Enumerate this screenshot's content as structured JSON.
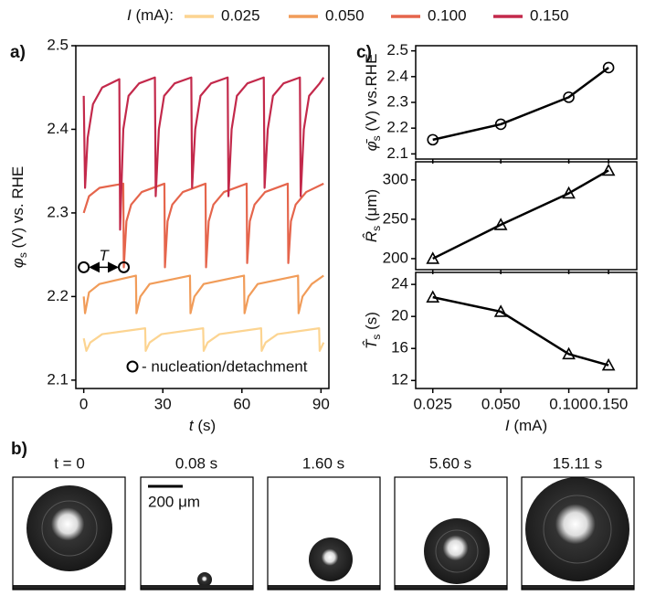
{
  "chart_data": [
    {
      "type": "line",
      "panel_label": "a)",
      "ylabel": {
        "sym": "φ",
        "sub": "s",
        "rest": " (V) vs. RHE"
      },
      "xlabel": {
        "sym": "t",
        "rest": " (s)"
      },
      "legend_title": {
        "sym": "I",
        "rest": " (mA):"
      },
      "xlim": [
        -3,
        93
      ],
      "ylim": [
        2.09,
        2.5
      ],
      "xticks": [
        0,
        30,
        60,
        90
      ],
      "yticks": [
        2.1,
        2.2,
        2.3,
        2.4,
        2.5
      ],
      "series": [
        {
          "name": "0.025",
          "color": "#fcd491",
          "x": [
            0,
            1,
            2.5,
            7,
            23.3,
            23.5,
            25,
            29.5,
            45.3,
            45.5,
            47,
            51.5,
            67.3,
            67.5,
            69,
            73.5,
            89.3,
            89.5,
            91
          ],
          "values": [
            2.15,
            2.135,
            2.145,
            2.155,
            2.162,
            2.135,
            2.145,
            2.155,
            2.162,
            2.135,
            2.145,
            2.155,
            2.162,
            2.135,
            2.145,
            2.155,
            2.162,
            2.135,
            2.145
          ]
        },
        {
          "name": "0.050",
          "color": "#f19c59",
          "x": [
            0,
            0.5,
            2,
            6,
            19.8,
            20,
            21.5,
            25,
            40.3,
            40.5,
            42,
            45.5,
            60.8,
            61,
            62.5,
            66,
            81.3,
            81.5,
            83,
            86.5,
            91
          ],
          "values": [
            2.2,
            2.18,
            2.205,
            2.215,
            2.225,
            2.18,
            2.2,
            2.215,
            2.225,
            2.18,
            2.2,
            2.215,
            2.225,
            2.18,
            2.2,
            2.215,
            2.225,
            2.18,
            2.2,
            2.215,
            2.225
          ]
        },
        {
          "name": "0.100",
          "color": "#e5654c",
          "x": [
            0,
            2,
            6,
            15,
            15.2,
            16.2,
            18,
            22,
            30.6,
            30.8,
            31.8,
            33.6,
            37.6,
            46.2,
            46.4,
            47.4,
            49.2,
            53.2,
            61.8,
            62,
            63,
            64.8,
            68.8,
            77.4,
            77.6,
            78.6,
            80.4,
            84.4,
            91
          ],
          "values": [
            2.3,
            2.32,
            2.33,
            2.335,
            2.235,
            2.29,
            2.31,
            2.325,
            2.335,
            2.235,
            2.29,
            2.31,
            2.325,
            2.335,
            2.235,
            2.29,
            2.31,
            2.325,
            2.335,
            2.24,
            2.29,
            2.31,
            2.325,
            2.335,
            2.24,
            2.29,
            2.31,
            2.325,
            2.335
          ]
        },
        {
          "name": "0.150",
          "color": "#c3294b",
          "x": [
            0,
            0.5,
            1.5,
            3.5,
            7,
            13.5,
            13.8,
            15,
            17,
            21,
            27,
            27.3,
            28.5,
            30.5,
            34.5,
            40.8,
            41.1,
            42.3,
            44.3,
            48.3,
            54.6,
            54.9,
            56.1,
            58.1,
            62.1,
            68.3,
            68.6,
            69.8,
            71.8,
            75.8,
            82,
            82.3,
            83.5,
            85.5,
            89.5,
            91
          ],
          "values": [
            2.44,
            2.33,
            2.39,
            2.43,
            2.45,
            2.46,
            2.28,
            2.4,
            2.44,
            2.455,
            2.462,
            2.32,
            2.4,
            2.44,
            2.455,
            2.462,
            2.33,
            2.4,
            2.44,
            2.455,
            2.462,
            2.32,
            2.4,
            2.44,
            2.455,
            2.462,
            2.33,
            2.4,
            2.44,
            2.455,
            2.462,
            2.32,
            2.4,
            2.44,
            2.455,
            2.462
          ]
        }
      ],
      "events": {
        "x": [
          0,
          15.2
        ],
        "values": [
          2.235,
          2.235
        ]
      },
      "period_label": "T",
      "event_note": "- nucleation/detachment"
    },
    {
      "type": "line",
      "panel_label": "c)",
      "log_x": true,
      "ylabel": {
        "sym": "φ̄",
        "sub": "s",
        "rest": " (V) vs.RHE"
      },
      "xlim": [
        0.021,
        0.2
      ],
      "ylim": [
        2.08,
        2.52
      ],
      "xticks": [
        0.025,
        0.05,
        0.1,
        0.15
      ],
      "yticks": [
        2.1,
        2.2,
        2.3,
        2.4,
        2.5
      ],
      "x": [
        0.025,
        0.05,
        0.1,
        0.15
      ],
      "series": [
        {
          "color": "#000000",
          "marker": "circle",
          "values": [
            2.155,
            2.215,
            2.32,
            2.435
          ]
        }
      ]
    },
    {
      "type": "line",
      "log_x": true,
      "ylabel": {
        "sym": "R̂",
        "sub": "s",
        "rest": " (μm)"
      },
      "xlim": [
        0.021,
        0.2
      ],
      "ylim": [
        186,
        323
      ],
      "xticks": [
        0.025,
        0.05,
        0.1,
        0.15
      ],
      "yticks": [
        200,
        250,
        300
      ],
      "x": [
        0.025,
        0.05,
        0.1,
        0.15
      ],
      "series": [
        {
          "color": "#000000",
          "marker": "triangle",
          "values": [
            200,
            243,
            283,
            312
          ]
        }
      ]
    },
    {
      "type": "line",
      "log_x": true,
      "ylabel": {
        "sym": "T̂",
        "sub": "s",
        "rest": " (s)"
      },
      "xlabel": {
        "sym": "I",
        "rest": " (mA)"
      },
      "xlim": [
        0.021,
        0.2
      ],
      "ylim": [
        11,
        25.5
      ],
      "xticks": [
        {
          "value": 0.025,
          "label": "0.025"
        },
        {
          "value": 0.05,
          "label": "0.050"
        },
        {
          "value": 0.1,
          "label": "0.100"
        },
        {
          "value": 0.15,
          "label": "0.150"
        }
      ],
      "yticks": [
        12,
        16,
        20,
        24
      ],
      "x": [
        0.025,
        0.05,
        0.1,
        0.15
      ],
      "series": [
        {
          "color": "#000000",
          "marker": "triangle",
          "values": [
            22.4,
            20.6,
            15.3,
            13.9
          ]
        }
      ]
    }
  ],
  "images": {
    "panel_label": "b)",
    "frames": [
      "t = 0",
      "0.08 s",
      "1.60 s",
      "5.60 s",
      "15.11 s"
    ],
    "scale_bar": "200 μm"
  }
}
